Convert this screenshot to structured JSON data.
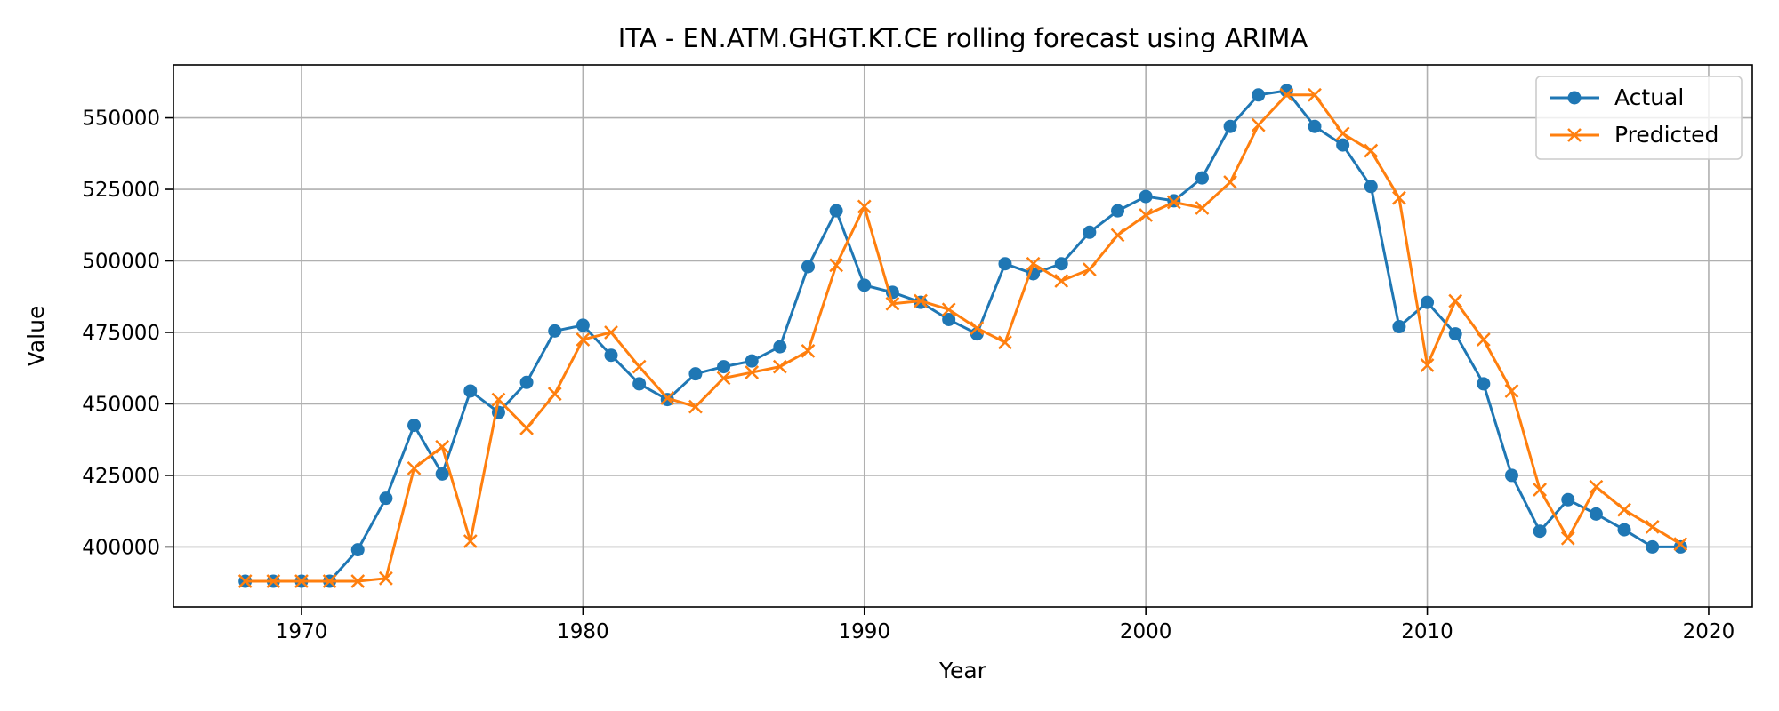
{
  "chart_data": {
    "type": "line",
    "title": "ITA - EN.ATM.GHGT.KT.CE rolling forecast using ARIMA",
    "xlabel": "Year",
    "ylabel": "Value",
    "xlim": [
      1965.45,
      2021.55
    ],
    "ylim": [
      379000,
      568500
    ],
    "xticks": [
      1970,
      1980,
      1990,
      2000,
      2010,
      2020
    ],
    "yticks": [
      400000,
      425000,
      450000,
      475000,
      500000,
      525000,
      550000
    ],
    "grid": true,
    "legend_position": "top-right",
    "x": [
      1968,
      1969,
      1970,
      1971,
      1972,
      1973,
      1974,
      1975,
      1976,
      1977,
      1978,
      1979,
      1980,
      1981,
      1982,
      1983,
      1984,
      1985,
      1986,
      1987,
      1988,
      1989,
      1990,
      1991,
      1992,
      1993,
      1994,
      1995,
      1996,
      1997,
      1998,
      1999,
      2000,
      2001,
      2002,
      2003,
      2004,
      2005,
      2006,
      2007,
      2008,
      2009,
      2010,
      2011,
      2012,
      2013,
      2014,
      2015,
      2016,
      2017,
      2018,
      2019
    ],
    "series": [
      {
        "name": "Actual",
        "color": "#1f77b4",
        "marker": "circle",
        "values": [
          388000,
          388000,
          388000,
          388000,
          399000,
          417000,
          442500,
          425500,
          454500,
          447000,
          457500,
          475500,
          477500,
          467000,
          457000,
          451500,
          460500,
          463000,
          465000,
          470000,
          498000,
          517500,
          491500,
          489000,
          485500,
          479500,
          474500,
          499000,
          495500,
          499000,
          510000,
          517500,
          522500,
          521000,
          529000,
          547000,
          558000,
          559500,
          547000,
          540500,
          526000,
          477000,
          485500,
          474500,
          457000,
          425000,
          405500,
          416500,
          411500,
          406000,
          400000,
          400000
        ]
      },
      {
        "name": "Predicted",
        "color": "#ff7f0e",
        "marker": "x",
        "values": [
          388000,
          388000,
          388000,
          388000,
          388000,
          389000,
          427500,
          435000,
          402000,
          451500,
          441500,
          453500,
          472500,
          475000,
          463000,
          452000,
          449000,
          459000,
          461000,
          463000,
          468500,
          498500,
          519000,
          485000,
          486000,
          483000,
          476500,
          471500,
          499000,
          493000,
          497000,
          509000,
          516000,
          520500,
          518500,
          527500,
          547500,
          558000,
          558000,
          544500,
          538500,
          522000,
          463500,
          486000,
          472500,
          454500,
          420000,
          403000,
          421000,
          413000,
          407000,
          401000
        ]
      }
    ]
  }
}
